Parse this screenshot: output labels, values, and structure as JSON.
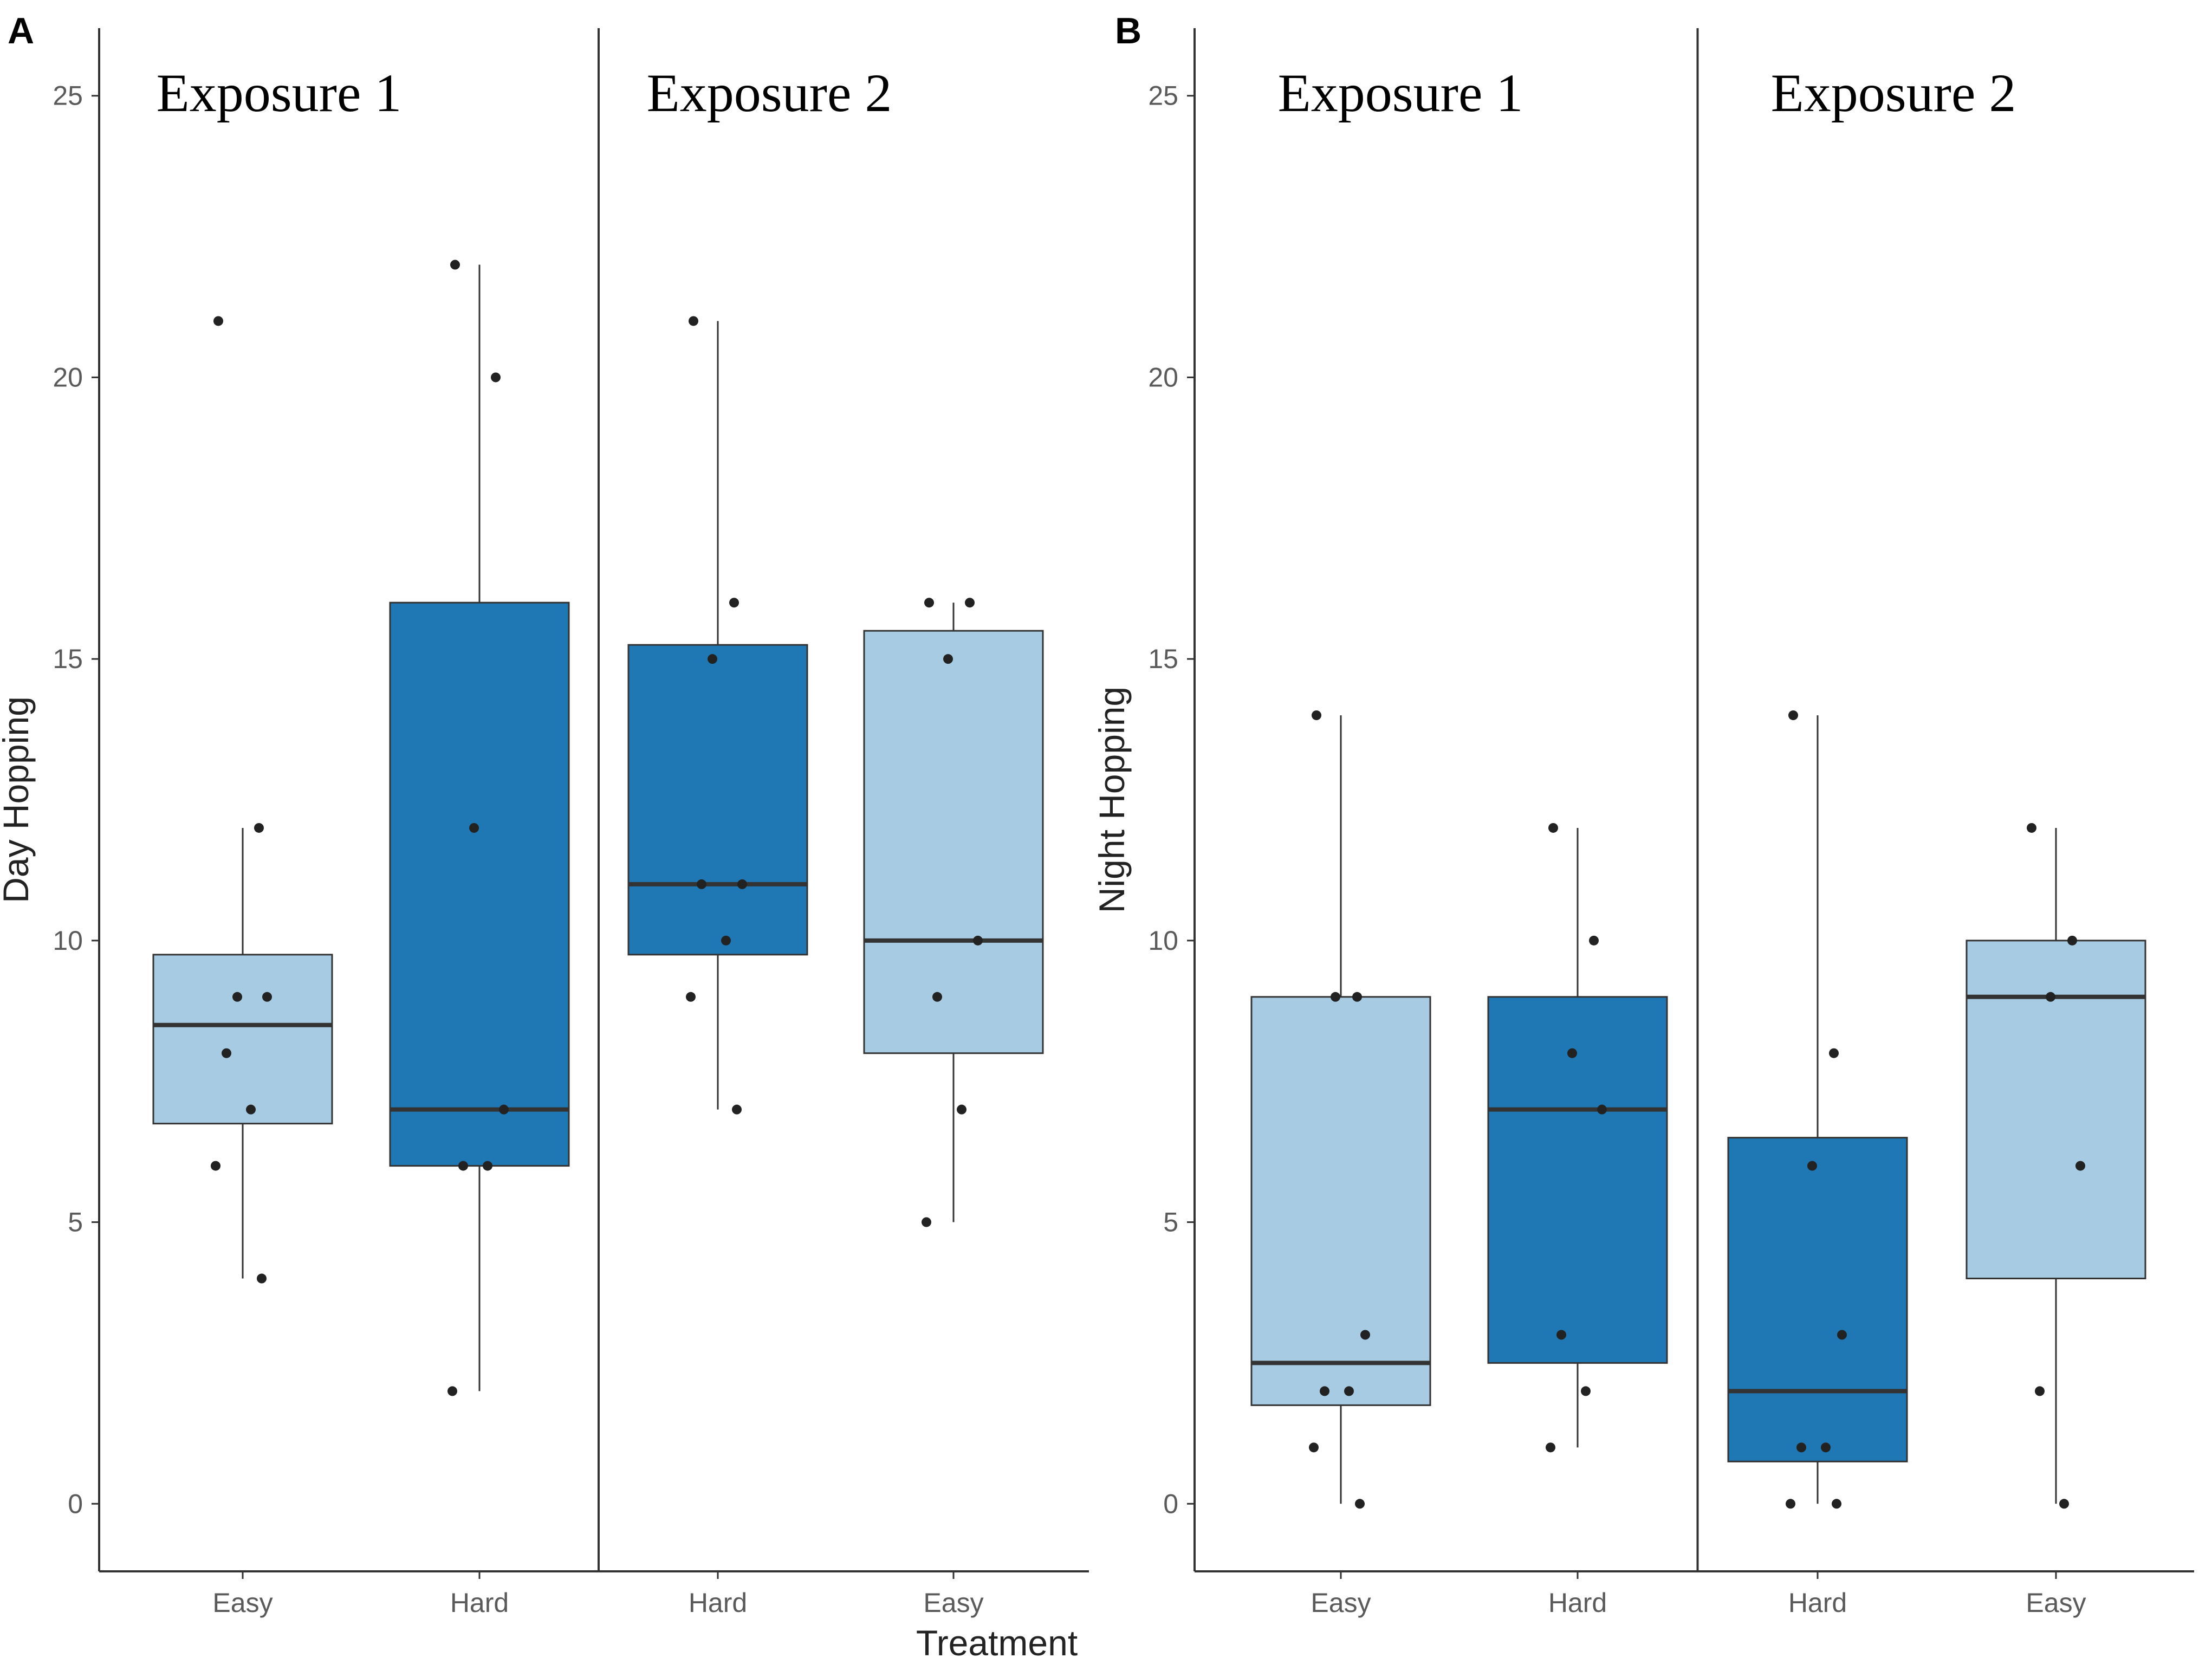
{
  "figure": {
    "xlabel": "Treatment",
    "colors": {
      "easy": "#a6cbe3",
      "hard": "#1f78b4",
      "line": "#333333",
      "point": "#222222"
    }
  },
  "chart_data": [
    {
      "type": "box",
      "panel": "A",
      "ylabel": "Day Hopping",
      "ylim": [
        -1.2,
        26.2
      ],
      "yticks": [
        0,
        5,
        10,
        15,
        20,
        25
      ],
      "sections": [
        "Exposure 1",
        "Exposure 2"
      ],
      "groups": [
        {
          "section": "Exposure 1",
          "label": "Easy",
          "fill": "easy",
          "whisker_low": 4,
          "q1": 6.75,
          "median": 8.5,
          "q3": 9.75,
          "whisker_high": 12,
          "points": [
            21,
            12,
            9,
            9,
            8,
            7,
            6,
            4
          ]
        },
        {
          "section": "Exposure 1",
          "label": "Hard",
          "fill": "hard",
          "whisker_low": 2,
          "q1": 6,
          "median": 7,
          "q3": 16,
          "whisker_high": 22,
          "points": [
            22,
            20,
            12,
            7,
            6,
            6,
            2
          ]
        },
        {
          "section": "Exposure 2",
          "label": "Hard",
          "fill": "hard",
          "whisker_low": 7,
          "q1": 9.75,
          "median": 11,
          "q3": 15.25,
          "whisker_high": 21,
          "points": [
            21,
            16,
            15,
            11,
            11,
            10,
            9,
            7
          ]
        },
        {
          "section": "Exposure 2",
          "label": "Easy",
          "fill": "easy",
          "whisker_low": 5,
          "q1": 8,
          "median": 10,
          "q3": 15.5,
          "whisker_high": 16,
          "points": [
            16,
            16,
            15,
            10,
            9,
            7,
            5
          ]
        }
      ]
    },
    {
      "type": "box",
      "panel": "B",
      "ylabel": "Night Hopping",
      "ylim": [
        -1.2,
        26.2
      ],
      "yticks": [
        0,
        5,
        10,
        15,
        20,
        25
      ],
      "sections": [
        "Exposure 1",
        "Exposure 2"
      ],
      "groups": [
        {
          "section": "Exposure 1",
          "label": "Easy",
          "fill": "easy",
          "whisker_low": 0,
          "q1": 1.75,
          "median": 2.5,
          "q3": 9,
          "whisker_high": 14,
          "points": [
            14,
            9,
            9,
            3,
            2,
            2,
            1,
            0
          ]
        },
        {
          "section": "Exposure 1",
          "label": "Hard",
          "fill": "hard",
          "whisker_low": 1,
          "q1": 2.5,
          "median": 7,
          "q3": 9,
          "whisker_high": 12,
          "points": [
            12,
            10,
            8,
            7,
            3,
            2,
            1
          ]
        },
        {
          "section": "Exposure 2",
          "label": "Hard",
          "fill": "hard",
          "whisker_low": 0,
          "q1": 0.75,
          "median": 2,
          "q3": 6.5,
          "whisker_high": 14,
          "points": [
            14,
            8,
            6,
            3,
            1,
            1,
            0,
            0
          ]
        },
        {
          "section": "Exposure 2",
          "label": "Easy",
          "fill": "easy",
          "whisker_low": 0,
          "q1": 4,
          "median": 9,
          "q3": 10,
          "whisker_high": 12,
          "points": [
            12,
            10,
            9,
            6,
            2,
            0
          ]
        }
      ]
    }
  ]
}
